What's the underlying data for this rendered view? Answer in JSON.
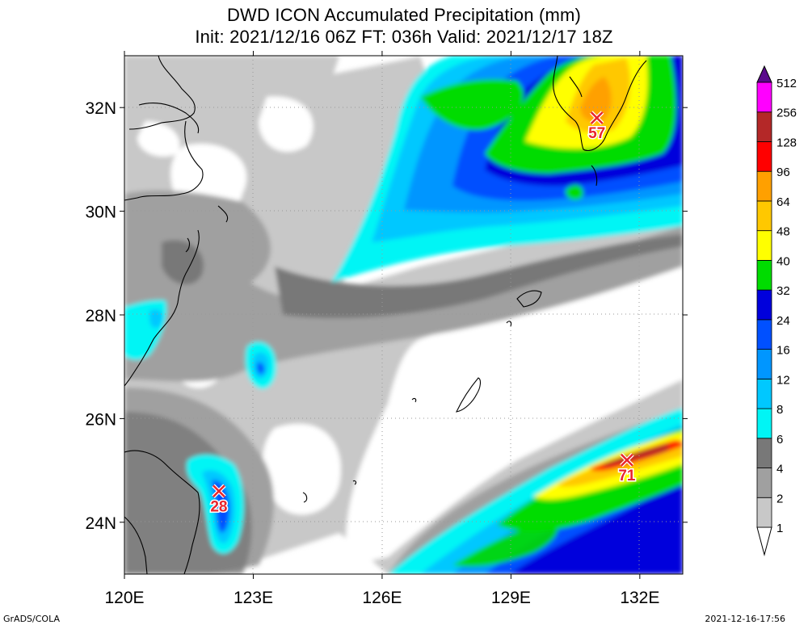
{
  "title_line1": "DWD ICON Accumulated Precipitation (mm)",
  "title_line2": "Init: 2021/12/16 06Z  FT: 036h  Valid: 2021/12/17 18Z",
  "footer_left": "GrADS/COLA",
  "footer_right": "2021-12-16-17:56",
  "axes": {
    "lon_labels": [
      "120E",
      "123E",
      "126E",
      "129E",
      "132E"
    ],
    "lat_labels": [
      "32N",
      "30N",
      "28N",
      "26N",
      "24N"
    ],
    "lon_range": [
      120,
      133
    ],
    "lat_range": [
      23,
      33
    ],
    "grid": "dotted"
  },
  "colorbar": {
    "levels": [
      "1",
      "2",
      "4",
      "6",
      "8",
      "12",
      "16",
      "24",
      "32",
      "40",
      "48",
      "64",
      "96",
      "128",
      "256",
      "512"
    ],
    "colors": [
      "#c8c8c8",
      "#a0a0a0",
      "#787878",
      "#00f5f5",
      "#00c8ff",
      "#0096ff",
      "#0050ff",
      "#0000dc",
      "#00dc00",
      "#00aa00",
      "#ffff00",
      "#ffc800",
      "#ffa000",
      "#ff0000",
      "#b42828",
      "#ff00ff",
      "#c800c8",
      "#8000b0",
      "#5a0a8c"
    ]
  },
  "markers": [
    {
      "name": "max-marker-north",
      "value": "57",
      "lon": 131.0,
      "lat": 31.8
    },
    {
      "name": "max-marker-southeast",
      "value": "71",
      "lon": 131.7,
      "lat": 25.2
    },
    {
      "name": "max-marker-taiwan",
      "value": "28",
      "lon": 122.2,
      "lat": 24.6
    }
  ]
}
